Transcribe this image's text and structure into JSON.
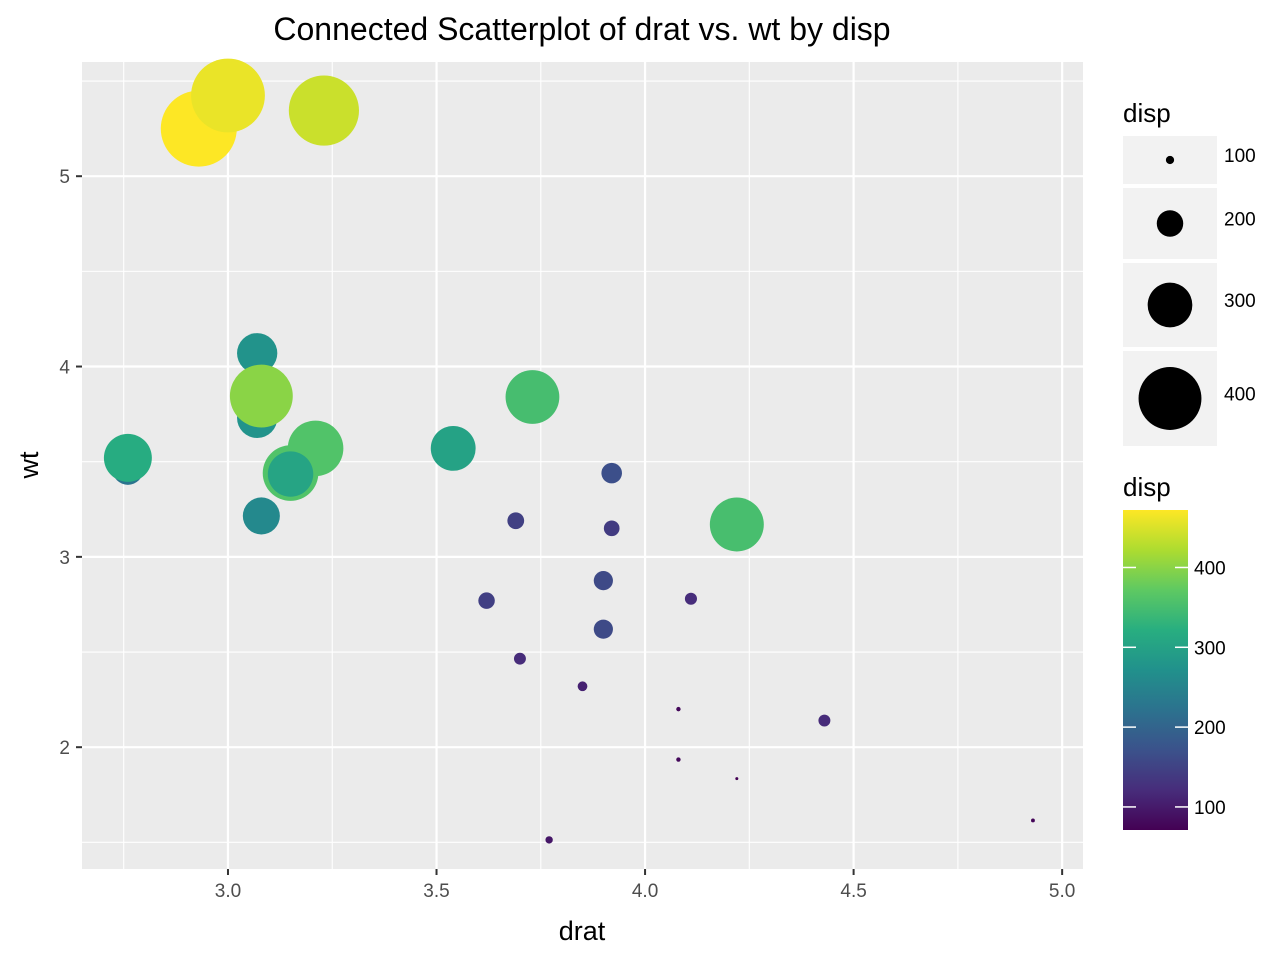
{
  "chart_data": {
    "type": "scatter",
    "title": "Connected Scatterplot of drat vs. wt by disp",
    "xlabel": "drat",
    "ylabel": "wt",
    "xlim": [
      2.65,
      5.05
    ],
    "ylim": [
      1.36,
      5.6
    ],
    "x_ticks": [
      3.0,
      3.5,
      4.0,
      4.5,
      5.0
    ],
    "x_tick_labels": [
      "3.0",
      "3.5",
      "4.0",
      "4.5",
      "5.0"
    ],
    "y_ticks": [
      2,
      3,
      4,
      5
    ],
    "y_tick_labels": [
      "2",
      "3",
      "4",
      "5"
    ],
    "grid": true,
    "size_legend": {
      "title": "disp",
      "breaks": [
        100,
        200,
        300,
        400
      ],
      "labels": [
        "100",
        "200",
        "300",
        "400"
      ]
    },
    "color_legend": {
      "title": "disp",
      "breaks": [
        100,
        200,
        300,
        400
      ],
      "labels": [
        "100",
        "200",
        "300",
        "400"
      ],
      "range": [
        71.1,
        472
      ],
      "colormap": "viridis"
    },
    "points": [
      {
        "x": 3.9,
        "y": 2.62,
        "disp": 160.0
      },
      {
        "x": 3.9,
        "y": 2.875,
        "disp": 160.0
      },
      {
        "x": 3.85,
        "y": 2.32,
        "disp": 108.0
      },
      {
        "x": 3.08,
        "y": 3.215,
        "disp": 258.0
      },
      {
        "x": 3.15,
        "y": 3.44,
        "disp": 360.0
      },
      {
        "x": 2.76,
        "y": 3.46,
        "disp": 225.0
      },
      {
        "x": 3.21,
        "y": 3.57,
        "disp": 360.0
      },
      {
        "x": 3.69,
        "y": 3.19,
        "disp": 146.7
      },
      {
        "x": 3.92,
        "y": 3.15,
        "disp": 140.8
      },
      {
        "x": 3.92,
        "y": 3.44,
        "disp": 167.6
      },
      {
        "x": 3.07,
        "y": 4.07,
        "disp": 275.8
      },
      {
        "x": 3.07,
        "y": 3.73,
        "disp": 275.8
      },
      {
        "x": 3.07,
        "y": 3.78,
        "disp": 275.8
      },
      {
        "x": 2.93,
        "y": 5.25,
        "disp": 472.0
      },
      {
        "x": 3.0,
        "y": 5.424,
        "disp": 460.0
      },
      {
        "x": 3.23,
        "y": 5.345,
        "disp": 440.0
      },
      {
        "x": 4.08,
        "y": 2.2,
        "disp": 78.7
      },
      {
        "x": 4.93,
        "y": 1.615,
        "disp": 75.7
      },
      {
        "x": 4.22,
        "y": 1.835,
        "disp": 71.1
      },
      {
        "x": 3.7,
        "y": 2.465,
        "disp": 120.1
      },
      {
        "x": 2.76,
        "y": 3.52,
        "disp": 318.0
      },
      {
        "x": 3.15,
        "y": 3.435,
        "disp": 304.0
      },
      {
        "x": 3.73,
        "y": 3.84,
        "disp": 350.0
      },
      {
        "x": 3.08,
        "y": 3.845,
        "disp": 400.0
      },
      {
        "x": 4.08,
        "y": 1.935,
        "disp": 79.0
      },
      {
        "x": 4.43,
        "y": 2.14,
        "disp": 120.3
      },
      {
        "x": 3.77,
        "y": 1.513,
        "disp": 95.1
      },
      {
        "x": 4.22,
        "y": 3.17,
        "disp": 351.0
      },
      {
        "x": 3.62,
        "y": 2.77,
        "disp": 145.0
      },
      {
        "x": 3.54,
        "y": 3.57,
        "disp": 301.0
      },
      {
        "x": 4.11,
        "y": 2.78,
        "disp": 121.0
      }
    ]
  }
}
